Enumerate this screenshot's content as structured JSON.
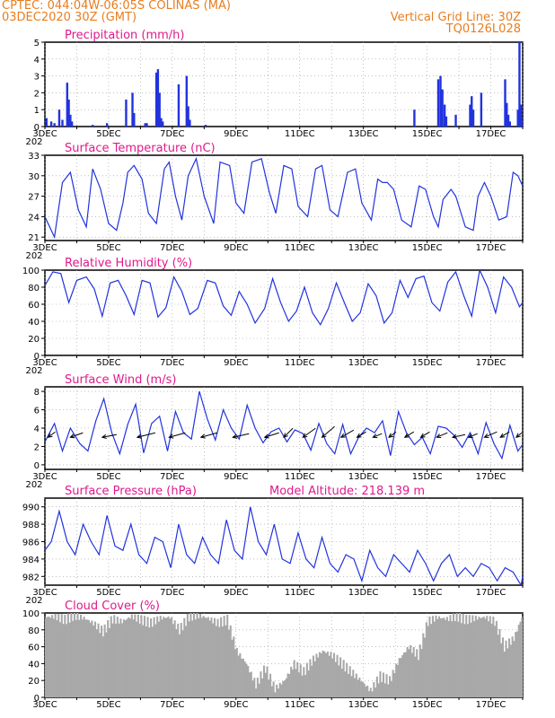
{
  "header": {
    "line1": "CPTEC:   044:04W-06:05S   COLINAS (MA)",
    "line2": "03DEC2020 30Z (GMT)",
    "right1": "Vertical Grid Line: 30Z",
    "right2": "TQ0126L028"
  },
  "colors": {
    "header": "#e87d1e",
    "title": "#e0198c",
    "line": "#2233dd",
    "cloud": "#a8a8a8",
    "grid": "#999999"
  },
  "x_axis": {
    "days_total": 15,
    "tick_labels": [
      "3DEC",
      "5DEC",
      "7DEC",
      "9DEC",
      "11DEC",
      "13DEC",
      "15DEC",
      "17DEC"
    ],
    "tick_days": [
      0,
      2,
      4,
      6,
      8,
      10,
      12,
      14
    ],
    "year_stub": "202"
  },
  "chart_data": [
    {
      "type": "bar",
      "title": "Precipitation (mm/h)",
      "ylim": [
        0,
        5
      ],
      "yticks": [
        "0",
        "1",
        "2",
        "3",
        "4",
        "5"
      ],
      "x_days": [
        0.05,
        0.2,
        0.3,
        0.45,
        0.55,
        0.7,
        0.75,
        0.8,
        0.85,
        1.5,
        1.95,
        2.55,
        2.75,
        2.8,
        3.15,
        3.2,
        3.5,
        3.55,
        3.6,
        3.65,
        3.7,
        4.2,
        4.45,
        4.5,
        4.55,
        5.05,
        11.6,
        12.35,
        12.42,
        12.48,
        12.55,
        12.6,
        12.9,
        13.35,
        13.4,
        13.45,
        13.7,
        14.45,
        14.5,
        14.55,
        14.6,
        14.85,
        14.9,
        14.95,
        15.0
      ],
      "values": [
        0.5,
        0.3,
        0.2,
        1.0,
        0.4,
        2.6,
        1.6,
        0.7,
        0.3,
        0.1,
        0.2,
        1.6,
        2.0,
        0.8,
        0.2,
        0.2,
        3.2,
        3.4,
        2.0,
        0.5,
        0.3,
        2.5,
        3.0,
        1.2,
        0.4,
        0.1,
        1.0,
        2.8,
        3.0,
        2.2,
        1.3,
        0.6,
        0.7,
        1.3,
        1.8,
        1.0,
        2.0,
        2.8,
        1.4,
        0.7,
        0.3,
        1.0,
        5.0,
        1.3,
        0.4
      ]
    },
    {
      "type": "line",
      "title": "Surface Temperature (nC)",
      "ylim": [
        20.5,
        33
      ],
      "yticks": [
        "21",
        "24",
        "27",
        "30",
        "33"
      ],
      "ytick_values": [
        21,
        24,
        27,
        30,
        33
      ],
      "x": [
        0,
        0.3,
        0.55,
        0.8,
        1.05,
        1.3,
        1.5,
        1.75,
        2.0,
        2.25,
        2.45,
        2.6,
        2.8,
        3.05,
        3.25,
        3.5,
        3.75,
        3.9,
        4.1,
        4.3,
        4.5,
        4.75,
        5.0,
        5.3,
        5.5,
        5.8,
        6.0,
        6.25,
        6.5,
        6.8,
        7.05,
        7.25,
        7.5,
        7.75,
        7.95,
        8.25,
        8.5,
        8.7,
        8.95,
        9.2,
        9.5,
        9.75,
        9.95,
        10.25,
        10.45,
        10.6,
        10.75,
        10.95,
        11.2,
        11.5,
        11.75,
        11.95,
        12.2,
        12.35,
        12.5,
        12.75,
        12.9,
        13.2,
        13.45,
        13.6,
        13.8,
        14.0,
        14.25,
        14.5,
        14.7,
        14.85,
        15.0
      ],
      "y": [
        24,
        21,
        29,
        30.5,
        25,
        22.5,
        31,
        28,
        23,
        22,
        26,
        30.5,
        31.5,
        29.5,
        24.5,
        23,
        31,
        32,
        27,
        23.5,
        30,
        32.5,
        27,
        23,
        32,
        31.5,
        26,
        24.5,
        32,
        32.5,
        27.5,
        24.5,
        31.5,
        31,
        25.5,
        24,
        31,
        31.5,
        25,
        24,
        30.5,
        31,
        26,
        23.5,
        29.5,
        29,
        29,
        28,
        23.5,
        22.5,
        28.5,
        28,
        24,
        22.5,
        26.5,
        28,
        27,
        22.5,
        22,
        27,
        29,
        27,
        23.5,
        24,
        30.5,
        30,
        28.5
      ]
    },
    {
      "type": "line",
      "title": "Relative Humidity (%)",
      "ylim": [
        0,
        100
      ],
      "yticks": [
        "0",
        "20",
        "40",
        "60",
        "80",
        "100"
      ],
      "ytick_values": [
        0,
        20,
        40,
        60,
        80,
        100
      ],
      "x": [
        0,
        0.25,
        0.5,
        0.75,
        1.0,
        1.3,
        1.55,
        1.8,
        2.05,
        2.3,
        2.55,
        2.8,
        3.05,
        3.3,
        3.55,
        3.8,
        4.05,
        4.3,
        4.55,
        4.8,
        5.1,
        5.35,
        5.6,
        5.85,
        6.1,
        6.35,
        6.6,
        6.9,
        7.15,
        7.4,
        7.65,
        7.9,
        8.15,
        8.4,
        8.65,
        8.9,
        9.15,
        9.4,
        9.65,
        9.9,
        10.15,
        10.4,
        10.65,
        10.9,
        11.15,
        11.4,
        11.65,
        11.9,
        12.15,
        12.4,
        12.65,
        12.9,
        13.15,
        13.4,
        13.65,
        13.9,
        14.15,
        14.4,
        14.65,
        14.9,
        15.0
      ],
      "y": [
        82,
        98,
        96,
        62,
        88,
        92,
        78,
        46,
        85,
        88,
        70,
        48,
        88,
        85,
        45,
        56,
        92,
        75,
        48,
        55,
        88,
        85,
        58,
        47,
        75,
        60,
        38,
        55,
        90,
        62,
        40,
        52,
        80,
        50,
        36,
        55,
        85,
        62,
        40,
        50,
        84,
        70,
        38,
        50,
        88,
        68,
        90,
        93,
        62,
        52,
        86,
        98,
        70,
        46,
        100,
        80,
        50,
        92,
        80,
        57,
        62
      ]
    },
    {
      "type": "line",
      "title": "Surface Wind (m/s)",
      "ylim": [
        -0.5,
        8.5
      ],
      "yticks": [
        "0",
        "2",
        "4",
        "6",
        "8"
      ],
      "ytick_values": [
        0,
        2,
        4,
        6,
        8
      ],
      "x": [
        0,
        0.3,
        0.55,
        0.8,
        1.1,
        1.35,
        1.6,
        1.85,
        2.1,
        2.35,
        2.6,
        2.85,
        3.1,
        3.35,
        3.6,
        3.85,
        4.1,
        4.35,
        4.6,
        4.85,
        5.1,
        5.35,
        5.6,
        5.85,
        6.1,
        6.35,
        6.6,
        6.85,
        7.1,
        7.35,
        7.6,
        7.85,
        8.1,
        8.35,
        8.6,
        8.85,
        9.1,
        9.35,
        9.6,
        9.85,
        10.1,
        10.35,
        10.6,
        10.85,
        11.1,
        11.35,
        11.6,
        11.85,
        12.1,
        12.35,
        12.6,
        12.85,
        13.1,
        13.35,
        13.6,
        13.85,
        14.1,
        14.35,
        14.6,
        14.85,
        15.0
      ],
      "y": [
        2.5,
        4.5,
        1.5,
        4,
        2.3,
        1.5,
        4.8,
        7.2,
        3.5,
        1.2,
        4.4,
        6.6,
        1.3,
        4.5,
        5.3,
        1.5,
        5.8,
        3.5,
        2.8,
        8,
        5,
        2.7,
        6,
        4,
        2.8,
        6.5,
        4,
        2.4,
        3.6,
        4,
        2.5,
        3.8,
        3.4,
        1.6,
        4.5,
        2.3,
        1.2,
        4.4,
        1.2,
        3,
        4,
        3.5,
        4.8,
        1,
        5.8,
        3.5,
        2.2,
        3,
        1.2,
        4.2,
        4,
        3.2,
        1.9,
        3.5,
        1.2,
        4.6,
        2.3,
        0.7,
        4.3,
        1.5,
        2.2
      ],
      "vectors_days": [
        0.1,
        0.8,
        1.8,
        2.9,
        3.9,
        4.9,
        5.9,
        6.9,
        7.5,
        8.1,
        8.7,
        9.3,
        9.8,
        10.3,
        10.8,
        11.3,
        11.8,
        12.3,
        12.8,
        13.3,
        13.8,
        14.3,
        14.8
      ],
      "vectors_dx": [
        8,
        14,
        16,
        20,
        18,
        18,
        18,
        16,
        10,
        14,
        14,
        14,
        10,
        10,
        8,
        10,
        10,
        12,
        14,
        10,
        14,
        10,
        6
      ],
      "vectors_dy": [
        -6,
        -5,
        -3,
        -5,
        -5,
        -5,
        -4,
        -5,
        -10,
        -10,
        -12,
        -8,
        -6,
        -4,
        -6,
        -6,
        -6,
        -5,
        -3,
        -4,
        -6,
        -6,
        -5
      ]
    },
    {
      "type": "line",
      "title": "Surface Pressure (hPa)",
      "annotation": "Model Altitude: 218.139  m",
      "ylim": [
        981,
        991
      ],
      "yticks": [
        "982",
        "984",
        "986",
        "988",
        "990"
      ],
      "ytick_values": [
        982,
        984,
        986,
        988,
        990
      ],
      "x": [
        0,
        0.2,
        0.45,
        0.7,
        0.95,
        1.2,
        1.45,
        1.7,
        1.95,
        2.2,
        2.45,
        2.7,
        2.95,
        3.2,
        3.45,
        3.7,
        3.95,
        4.2,
        4.45,
        4.7,
        4.95,
        5.2,
        5.45,
        5.7,
        5.95,
        6.2,
        6.45,
        6.7,
        6.95,
        7.2,
        7.45,
        7.7,
        7.95,
        8.2,
        8.45,
        8.7,
        8.95,
        9.2,
        9.45,
        9.7,
        9.95,
        10.2,
        10.45,
        10.7,
        10.95,
        11.2,
        11.45,
        11.7,
        11.95,
        12.2,
        12.45,
        12.7,
        12.95,
        13.2,
        13.45,
        13.7,
        13.95,
        14.2,
        14.45,
        14.7,
        14.95,
        15.0
      ],
      "y": [
        985,
        986,
        989.5,
        986,
        984.5,
        988,
        986,
        984.5,
        989,
        985.5,
        985,
        988,
        984.5,
        983.5,
        986.5,
        986,
        983,
        988,
        984.5,
        983.5,
        986.5,
        984.5,
        983.5,
        988.5,
        985,
        984,
        990,
        986,
        984.5,
        988,
        984,
        983.5,
        987,
        984,
        983,
        986.5,
        983.5,
        982.5,
        984.5,
        984,
        981.5,
        985,
        983,
        982,
        984.5,
        983.5,
        982.5,
        985,
        983.5,
        981.5,
        983.5,
        984.5,
        982,
        983,
        982,
        983.5,
        983,
        981.5,
        983,
        982.5,
        981,
        982
      ]
    },
    {
      "type": "area",
      "title": "Cloud Cover (%)",
      "ylim": [
        0,
        100
      ],
      "yticks": [
        "0",
        "20",
        "40",
        "60",
        "80",
        "100"
      ],
      "ytick_values": [
        0,
        20,
        40,
        60,
        80,
        100
      ],
      "x": [
        0,
        0.3,
        0.6,
        0.9,
        1.2,
        1.5,
        1.8,
        2.1,
        2.4,
        2.7,
        3.0,
        3.3,
        3.6,
        3.9,
        4.2,
        4.5,
        4.8,
        5.1,
        5.4,
        5.7,
        6.0,
        6.3,
        6.6,
        6.9,
        7.2,
        7.5,
        7.8,
        8.1,
        8.4,
        8.7,
        9.0,
        9.3,
        9.6,
        9.9,
        10.2,
        10.5,
        10.8,
        11.1,
        11.4,
        11.7,
        12.0,
        12.3,
        12.6,
        12.9,
        13.2,
        13.5,
        13.8,
        14.1,
        14.4,
        14.7,
        15.0
      ],
      "y": [
        95,
        96,
        92,
        97,
        94,
        88,
        78,
        93,
        90,
        96,
        92,
        88,
        94,
        95,
        80,
        96,
        97,
        94,
        88,
        92,
        55,
        40,
        15,
        35,
        10,
        20,
        40,
        30,
        45,
        55,
        50,
        40,
        30,
        20,
        8,
        25,
        20,
        45,
        60,
        50,
        90,
        95,
        93,
        96,
        92,
        94,
        95,
        90,
        60,
        70,
        100
      ]
    }
  ]
}
